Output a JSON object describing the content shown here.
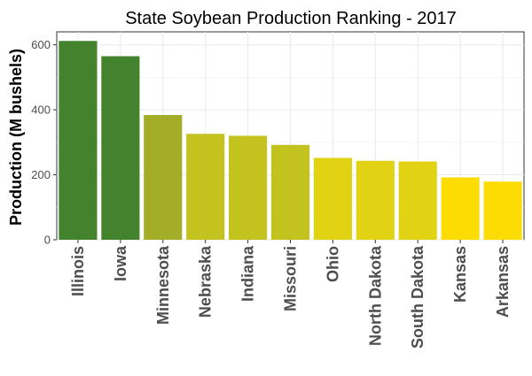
{
  "chart_data": {
    "type": "bar",
    "title": "State Soybean Production Ranking - 2017",
    "xlabel": "",
    "ylabel": "Production (M bushels)",
    "ylim": [
      0,
      640
    ],
    "yticks": [
      0,
      200,
      400,
      600
    ],
    "grid": true,
    "legend": "none",
    "categories": [
      "Illinois",
      "Iowa",
      "Minnesota",
      "Nebraska",
      "Indiana",
      "Missouri",
      "Ohio",
      "North Dakota",
      "South Dakota",
      "Kansas",
      "Arkansas"
    ],
    "values": [
      612,
      565,
      384,
      326,
      320,
      292,
      252,
      243,
      241,
      192,
      179
    ],
    "colors": [
      "#43832d",
      "#43832d",
      "#a4ad27",
      "#c3c21f",
      "#c3c21f",
      "#c3c21f",
      "#e2d214",
      "#e2d214",
      "#e2d214",
      "#fddc03",
      "#fddc03"
    ]
  }
}
